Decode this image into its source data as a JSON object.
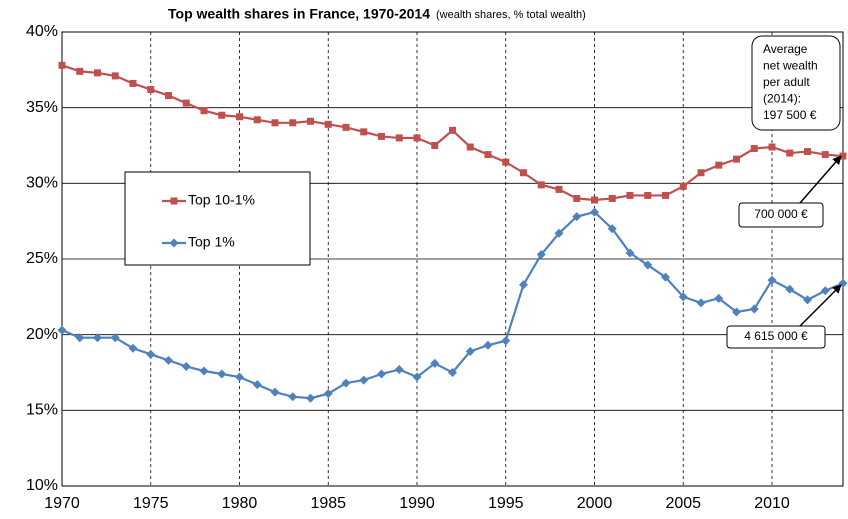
{
  "chart_data": {
    "type": "line",
    "title": "Top wealth shares in France, 1970-2014",
    "subtitle": "(wealth shares, % total wealth)",
    "x": [
      1970,
      1971,
      1972,
      1973,
      1974,
      1975,
      1976,
      1977,
      1978,
      1979,
      1980,
      1981,
      1982,
      1983,
      1984,
      1985,
      1986,
      1987,
      1988,
      1989,
      1990,
      1991,
      1992,
      1993,
      1994,
      1995,
      1996,
      1997,
      1998,
      1999,
      2000,
      2001,
      2002,
      2003,
      2004,
      2005,
      2006,
      2007,
      2008,
      2009,
      2010,
      2011,
      2012,
      2013,
      2014
    ],
    "series": [
      {
        "name": "Top 10-1%",
        "color": "#c0504d",
        "marker": "square",
        "values": [
          37.8,
          37.4,
          37.3,
          37.1,
          36.6,
          36.2,
          35.8,
          35.3,
          34.8,
          34.5,
          34.4,
          34.2,
          34.0,
          34.0,
          34.1,
          33.9,
          33.7,
          33.4,
          33.1,
          33.0,
          33.0,
          32.5,
          33.5,
          32.4,
          31.9,
          31.4,
          30.7,
          29.9,
          29.6,
          29.0,
          28.9,
          29.0,
          29.2,
          29.2,
          29.2,
          29.8,
          30.7,
          31.2,
          31.6,
          32.3,
          32.4,
          32.0,
          32.1,
          31.9,
          31.8
        ]
      },
      {
        "name": "Top 1%",
        "color": "#4f81bd",
        "marker": "diamond",
        "values": [
          20.3,
          19.8,
          19.8,
          19.8,
          19.1,
          18.7,
          18.3,
          17.9,
          17.6,
          17.4,
          17.2,
          16.7,
          16.2,
          15.9,
          15.8,
          16.1,
          16.8,
          17.0,
          17.4,
          17.7,
          17.2,
          18.1,
          17.5,
          18.9,
          19.3,
          19.6,
          23.3,
          25.3,
          26.7,
          27.8,
          28.1,
          27.0,
          25.4,
          24.6,
          23.8,
          22.5,
          22.1,
          22.4,
          21.5,
          21.7,
          23.6,
          23.0,
          22.3,
          22.9,
          23.4
        ]
      }
    ],
    "xlim": [
      1970,
      2014
    ],
    "xticks": [
      1970,
      1975,
      1980,
      1985,
      1990,
      1995,
      2000,
      2005,
      2010
    ],
    "ylim": [
      10,
      40
    ],
    "yticks": [
      {
        "value": 10,
        "label": "10%"
      },
      {
        "value": 15,
        "label": "15%"
      },
      {
        "value": 20,
        "label": "20%"
      },
      {
        "value": 25,
        "label": "25%"
      },
      {
        "value": 30,
        "label": "30%"
      },
      {
        "value": 35,
        "label": "35%"
      },
      {
        "value": 40,
        "label": "40%"
      }
    ],
    "grid": true,
    "annotations": {
      "average": [
        "Average",
        "net wealth",
        "per adult",
        "(2014):",
        "197 500 €"
      ],
      "top10": "700 000 €",
      "top1": "4 615 000 €"
    }
  }
}
